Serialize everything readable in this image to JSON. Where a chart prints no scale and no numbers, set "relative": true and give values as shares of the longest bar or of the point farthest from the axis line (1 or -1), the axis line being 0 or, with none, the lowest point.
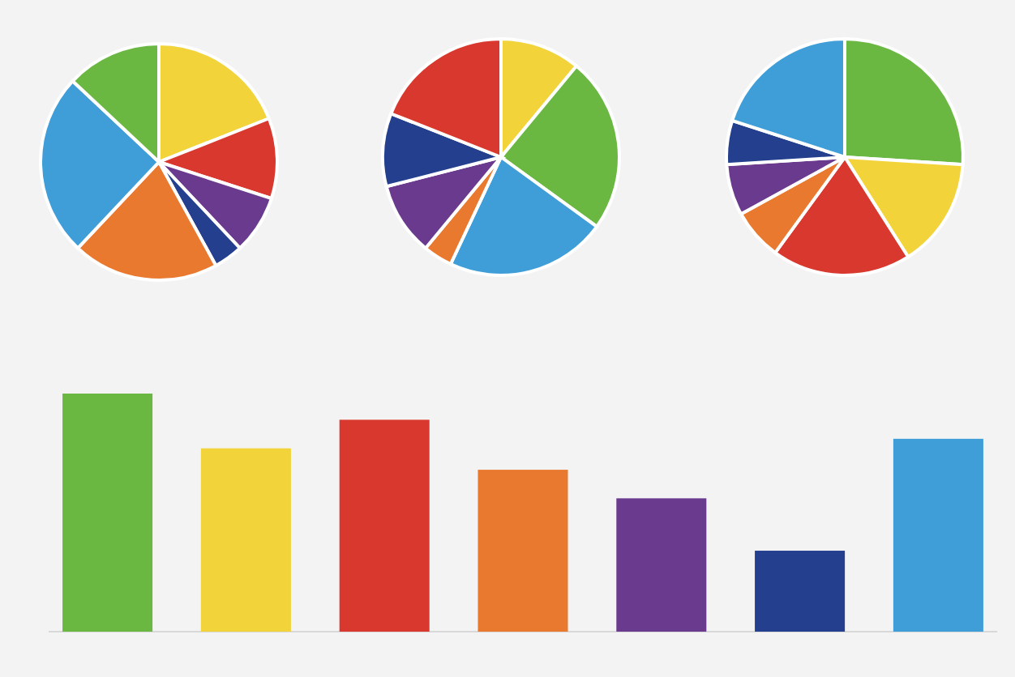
{
  "chart_data": [
    {
      "type": "pie",
      "categories": [
        null,
        null,
        null,
        null,
        null,
        null,
        null
      ],
      "values": [
        19,
        11,
        8,
        4,
        20,
        25,
        13
      ],
      "colors": [
        "#f2d43a",
        "#d9382e",
        "#6a3a8e",
        "#233f8e",
        "#e8792f",
        "#3f9ed8",
        "#6ab842"
      ]
    },
    {
      "type": "pie",
      "categories": [
        null,
        null,
        null,
        null,
        null,
        null,
        null
      ],
      "values": [
        11,
        24,
        22,
        4,
        10,
        10,
        19
      ],
      "colors": [
        "#f2d43a",
        "#6ab842",
        "#3f9ed8",
        "#e8792f",
        "#6a3a8e",
        "#233f8e",
        "#d9382e"
      ]
    },
    {
      "type": "pie",
      "categories": [
        null,
        null,
        null,
        null,
        null,
        null,
        null
      ],
      "values": [
        26,
        15,
        19,
        7,
        7,
        6,
        20
      ],
      "colors": [
        "#6ab842",
        "#f2d43a",
        "#d9382e",
        "#e8792f",
        "#6a3a8e",
        "#233f8e",
        "#3f9ed8"
      ]
    },
    {
      "type": "bar",
      "relative": true,
      "categories": [
        null,
        null,
        null,
        null,
        null,
        null,
        null
      ],
      "values": [
        1,
        0.77,
        0.89,
        0.68,
        0.56,
        0.34,
        0.81
      ],
      "colors": [
        "#6ab842",
        "#f2d43a",
        "#d9382e",
        "#e8792f",
        "#6a3a8e",
        "#233f8e",
        "#3f9ed8"
      ]
    }
  ]
}
